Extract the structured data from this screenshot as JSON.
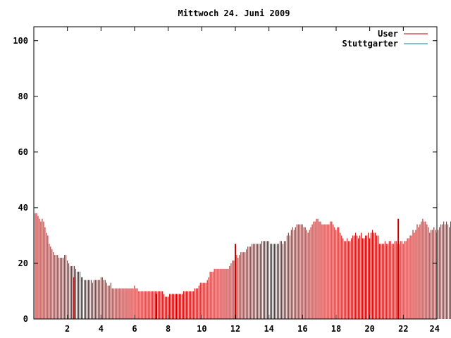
{
  "colors": {
    "user": "#cc0000",
    "stuttgarter": "#008b8b",
    "axis": "#000000",
    "background": "#ffffff"
  },
  "chart_data": {
    "type": "bar",
    "title": "Mittwoch 24. Juni 2009",
    "xlabel": "",
    "ylabel": "",
    "xlim": [
      0,
      24
    ],
    "ylim": [
      0,
      105
    ],
    "grid": false,
    "legend_position": "top-right",
    "x_ticks": [
      2,
      4,
      6,
      8,
      10,
      12,
      14,
      16,
      18,
      20,
      22,
      24
    ],
    "y_ticks": [
      0,
      20,
      40,
      60,
      80,
      100
    ],
    "legend": [
      {
        "label": "User",
        "series": "user"
      },
      {
        "label": "Stuttgarter",
        "series": "stuttgarter"
      }
    ],
    "series": [
      {
        "name": "User",
        "x_start": 0.0833,
        "x_step": 0.0833,
        "values": [
          38,
          38,
          37,
          36,
          35,
          36,
          35,
          33,
          31,
          30,
          27,
          26,
          25,
          24,
          23,
          23,
          23,
          22,
          22,
          22,
          22,
          23,
          23,
          21,
          20,
          19,
          19,
          19,
          19,
          18,
          17,
          17,
          17,
          15,
          15,
          14,
          14,
          14,
          14,
          14,
          14,
          13,
          14,
          14,
          14,
          14,
          14,
          15,
          15,
          14,
          14,
          13,
          12,
          12,
          13,
          11,
          11,
          11,
          11,
          11,
          11,
          11,
          11,
          11,
          11,
          11,
          11,
          11,
          11,
          11,
          11,
          12,
          11,
          11,
          10,
          10,
          10,
          10,
          10,
          10,
          10,
          10,
          10,
          10,
          10,
          10,
          10,
          10,
          10,
          10,
          10,
          10,
          9,
          8,
          8,
          8,
          9,
          9,
          9,
          9,
          9,
          9,
          9,
          9,
          9,
          9,
          10,
          10,
          10,
          10,
          10,
          10,
          10,
          10,
          11,
          11,
          11,
          12,
          13,
          13,
          13,
          13,
          13,
          14,
          15,
          17,
          17,
          17,
          18,
          18,
          18,
          18,
          18,
          18,
          18,
          18,
          18,
          18,
          18,
          19,
          20,
          21,
          21,
          22,
          23,
          22,
          23,
          24,
          24,
          24,
          24,
          25,
          26,
          26,
          26,
          27,
          27,
          27,
          27,
          27,
          27,
          27,
          28,
          28,
          28,
          28,
          28,
          28,
          27,
          27,
          27,
          27,
          27,
          27,
          27,
          28,
          28,
          27,
          28,
          28,
          30,
          31,
          30,
          32,
          33,
          32,
          33,
          34,
          34,
          34,
          34,
          34,
          33,
          33,
          32,
          31,
          32,
          33,
          34,
          35,
          35,
          36,
          36,
          35,
          35,
          34,
          34,
          34,
          34,
          34,
          34,
          35,
          35,
          34,
          33,
          32,
          33,
          33,
          31,
          30,
          29,
          28,
          28,
          29,
          28,
          28,
          29,
          30,
          30,
          31,
          30,
          29,
          30,
          31,
          29,
          29,
          30,
          30,
          31,
          29,
          31,
          32,
          31,
          31,
          30,
          30,
          27,
          27,
          27,
          27,
          28,
          27,
          27,
          28,
          28,
          27,
          27,
          28,
          28,
          27,
          27,
          28,
          28,
          27,
          28,
          28,
          29,
          29,
          30,
          30,
          32,
          31,
          32,
          34,
          33,
          34,
          35,
          36,
          35,
          35,
          34,
          33,
          31,
          32,
          32,
          33,
          32,
          31,
          32,
          33,
          34,
          34,
          35,
          34,
          35,
          34,
          33,
          35,
          37,
          36,
          35,
          33,
          32,
          34,
          36,
          37,
          37,
          39,
          37,
          36,
          35,
          35,
          36,
          36,
          37,
          38,
          38,
          37,
          37,
          38,
          38,
          39,
          40,
          41,
          41,
          40,
          38,
          36,
          34,
          33,
          32,
          33,
          33,
          34,
          34,
          35,
          35,
          35,
          33,
          32,
          31,
          31,
          31,
          31
        ]
      },
      {
        "name": "Stuttgarter",
        "x": [
          2.4,
          7.3,
          12.0,
          21.7
        ],
        "values": [
          15,
          9,
          27,
          36
        ]
      }
    ]
  }
}
